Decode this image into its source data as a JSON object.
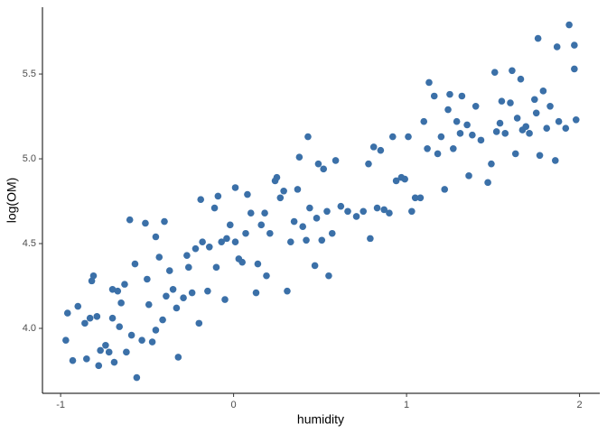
{
  "chart_data": {
    "type": "scatter",
    "x_label": "humidity",
    "y_label": "log(OM)",
    "color": "#3b70a8",
    "xlim": [
      -1.105,
      2.117
    ],
    "ylim": [
      3.617,
      5.894
    ],
    "xticks": [
      -1,
      0,
      1,
      2
    ],
    "yticks": [
      {
        "value": 4,
        "label": "4.0"
      },
      {
        "value": 4.5,
        "label": "4.5"
      },
      {
        "value": 5,
        "label": "5.0"
      },
      {
        "value": 5.5,
        "label": "5.5"
      }
    ],
    "x": [
      -0.96,
      -0.97,
      -0.93,
      -0.9,
      -0.86,
      -0.85,
      -0.83,
      -0.82,
      -0.81,
      -0.79,
      -0.78,
      -0.77,
      -0.74,
      -0.72,
      -0.7,
      -0.7,
      -0.69,
      -0.67,
      -0.66,
      -0.65,
      -0.63,
      -0.62,
      -0.6,
      -0.59,
      -0.57,
      -0.56,
      -0.53,
      -0.51,
      -0.5,
      -0.49,
      -0.47,
      -0.45,
      -0.45,
      -0.43,
      -0.41,
      -0.4,
      -0.39,
      -0.37,
      -0.35,
      -0.33,
      -0.32,
      -0.29,
      -0.27,
      -0.26,
      -0.24,
      -0.22,
      -0.2,
      -0.19,
      -0.18,
      -0.15,
      -0.14,
      -0.11,
      -0.1,
      -0.09,
      -0.07,
      -0.05,
      -0.04,
      -0.02,
      0.01,
      0.01,
      0.03,
      0.05,
      0.07,
      0.08,
      0.1,
      0.13,
      0.14,
      0.16,
      0.18,
      0.19,
      0.21,
      0.24,
      0.25,
      0.27,
      0.29,
      0.31,
      0.33,
      0.35,
      0.37,
      0.38,
      0.4,
      0.42,
      0.43,
      0.44,
      0.47,
      0.48,
      0.49,
      0.51,
      0.52,
      0.54,
      0.55,
      0.57,
      0.59,
      0.62,
      0.66,
      0.71,
      0.75,
      0.78,
      0.79,
      0.81,
      0.83,
      0.85,
      0.87,
      0.9,
      0.92,
      0.94,
      0.97,
      0.99,
      1.01,
      1.03,
      1.05,
      1.08,
      1.1,
      1.12,
      1.13,
      1.16,
      1.18,
      1.2,
      1.22,
      1.24,
      1.25,
      1.27,
      1.29,
      1.31,
      1.32,
      1.35,
      1.36,
      1.38,
      1.4,
      1.43,
      1.47,
      1.49,
      1.51,
      1.52,
      1.54,
      1.55,
      1.57,
      1.6,
      1.61,
      1.63,
      1.64,
      1.66,
      1.67,
      1.69,
      1.71,
      1.74,
      1.75,
      1.76,
      1.77,
      1.79,
      1.81,
      1.83,
      1.86,
      1.87,
      1.88,
      1.92,
      1.94,
      1.97,
      1.97,
      1.98
    ],
    "values": [
      4.09,
      3.93,
      3.81,
      4.13,
      4.03,
      3.82,
      4.06,
      4.28,
      4.31,
      4.07,
      3.78,
      3.87,
      3.9,
      3.86,
      4.06,
      4.23,
      3.8,
      4.22,
      4.01,
      4.15,
      4.26,
      3.86,
      4.64,
      3.96,
      4.38,
      3.71,
      3.93,
      4.62,
      4.29,
      4.14,
      3.92,
      4.54,
      3.99,
      4.42,
      4.05,
      4.63,
      4.19,
      4.34,
      4.23,
      4.12,
      3.83,
      4.18,
      4.43,
      4.36,
      4.21,
      4.47,
      4.03,
      4.76,
      4.51,
      4.22,
      4.48,
      4.71,
      4.36,
      4.78,
      4.51,
      4.17,
      4.53,
      4.61,
      4.51,
      4.83,
      4.41,
      4.39,
      4.56,
      4.79,
      4.68,
      4.21,
      4.38,
      4.61,
      4.68,
      4.31,
      4.56,
      4.87,
      4.89,
      4.77,
      4.81,
      4.22,
      4.51,
      4.63,
      4.82,
      5.01,
      4.6,
      4.52,
      5.13,
      4.71,
      4.37,
      4.65,
      4.97,
      4.52,
      4.94,
      4.69,
      4.31,
      4.56,
      4.99,
      4.72,
      4.69,
      4.66,
      4.69,
      4.97,
      4.53,
      5.07,
      4.71,
      5.05,
      4.7,
      4.68,
      5.13,
      4.87,
      4.89,
      4.88,
      5.13,
      4.69,
      4.77,
      4.77,
      5.22,
      5.06,
      5.45,
      5.37,
      5.03,
      5.13,
      4.82,
      5.29,
      5.38,
      5.06,
      5.22,
      5.15,
      5.37,
      5.2,
      4.9,
      5.14,
      5.31,
      5.11,
      4.86,
      4.97,
      5.51,
      5.16,
      5.21,
      5.34,
      5.15,
      5.33,
      5.52,
      5.03,
      5.24,
      5.47,
      5.17,
      5.19,
      5.15,
      5.35,
      5.27,
      5.71,
      5.02,
      5.4,
      5.18,
      5.31,
      4.99,
      5.66,
      5.22,
      5.18,
      5.79,
      5.67,
      5.53,
      5.23
    ]
  }
}
